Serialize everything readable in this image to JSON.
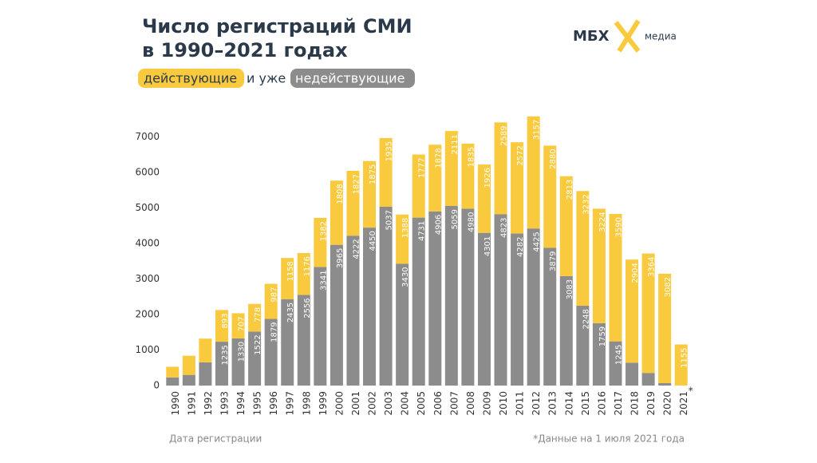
{
  "chart_data": {
    "type": "stacked_bar",
    "title": [
      "Число регистраций СМИ",
      "в 1990–2021 годах"
    ],
    "subtitle_connector": "и уже",
    "logo": {
      "text": "МБХ",
      "subtext": "медиа"
    },
    "x_label": "Дата регистрации",
    "footnote": "*Данные на 1 июля 2021 года",
    "footnote_mark": "*",
    "categories": [
      "1990",
      "1991",
      "1992",
      "1993",
      "1994",
      "1995",
      "1996",
      "1997",
      "1998",
      "1999",
      "2000",
      "2001",
      "2002",
      "2003",
      "2004",
      "2005",
      "2006",
      "2007",
      "2008",
      "2009",
      "2010",
      "2011",
      "2012",
      "2013",
      "2014",
      "2015",
      "2016",
      "2017",
      "2018",
      "2019",
      "2020",
      "2021"
    ],
    "series": [
      {
        "name": "действующие",
        "color": "#f9c93e",
        "values": [
          300,
          540,
          668,
          893,
          707,
          778,
          987,
          1158,
          1176,
          1382,
          1808,
          1827,
          1875,
          1935,
          1388,
          1777,
          1878,
          2111,
          1835,
          1926,
          2589,
          2572,
          3157,
          2880,
          2813,
          3232,
          3224,
          3590,
          2904,
          3364,
          3082,
          1155
        ],
        "value_labels": [
          null,
          "540",
          "668",
          "893",
          "707",
          "778",
          "987",
          "1158",
          "1176",
          "1382",
          "1808",
          "1827",
          "1875",
          "1935",
          "1388",
          "1777",
          "1878",
          "2111",
          "1835",
          "1926",
          "2589",
          "2572",
          "3157",
          "2880",
          "2813",
          "3232",
          "3224",
          "3590",
          "2904",
          "3364",
          "3082",
          "1155"
        ]
      },
      {
        "name": "недействующие",
        "color": "#8c8c8c",
        "values": [
          230,
          300,
          655,
          1235,
          1330,
          1522,
          1879,
          2435,
          2556,
          3341,
          3965,
          4222,
          4450,
          5037,
          3430,
          4731,
          4906,
          5059,
          4980,
          4301,
          4823,
          4282,
          4425,
          3879,
          3083,
          2248,
          1759,
          1245,
          645,
          356,
          68,
          3
        ],
        "value_labels": [
          null,
          null,
          "655",
          "1235",
          "1330",
          "1522",
          "1879",
          "2435",
          "2556",
          "3341",
          "3965",
          "4222",
          "4450",
          "5037",
          "3430",
          "4731",
          "4906",
          "5059",
          "4980",
          "4301",
          "4823",
          "4282",
          "4425",
          "3879",
          "3083",
          "2248",
          "1759",
          "1245",
          "645",
          "356",
          "68",
          "3"
        ]
      }
    ],
    "ylim": [
      0,
      7600
    ],
    "yticks": [
      0,
      1000,
      2000,
      3000,
      4000,
      5000,
      6000,
      7000
    ]
  }
}
